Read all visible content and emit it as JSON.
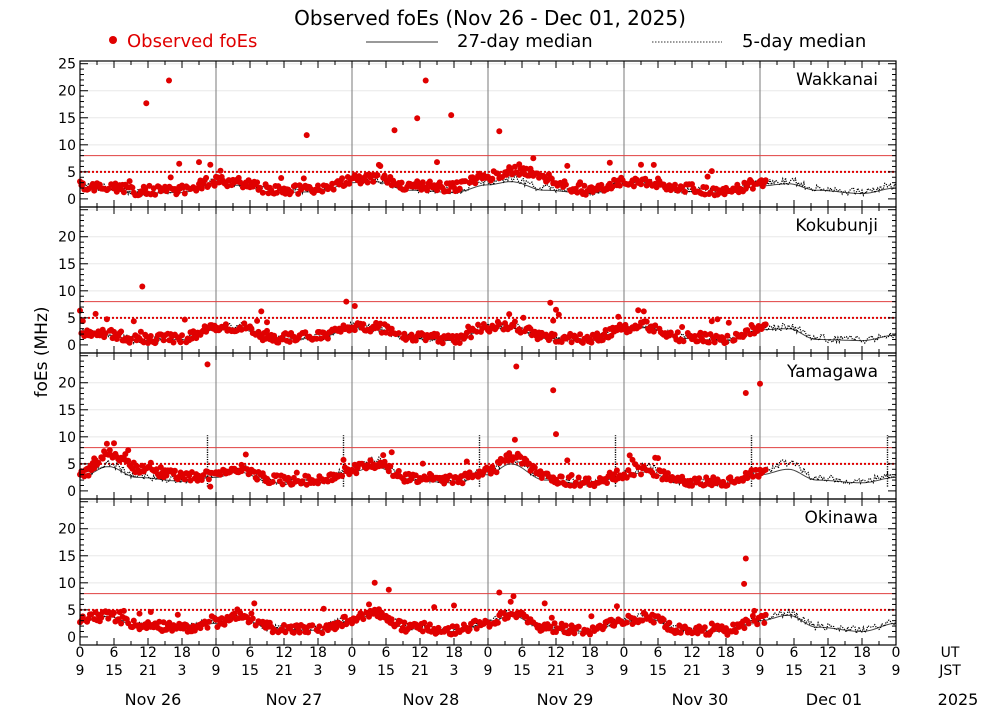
{
  "chart_data": {
    "type": "scatter",
    "title": "Observed foEs (Nov 26 - Dec 01, 2025)",
    "ylabel": "foEs (MHz)",
    "ylim": [
      -1.5,
      25.5
    ],
    "yticks": [
      "0",
      "5",
      "10",
      "15",
      "20",
      "25"
    ],
    "yticks_lower": [
      "0",
      "5",
      "10",
      "15",
      "20"
    ],
    "thresholds": {
      "solid_red": 8,
      "dotted_red": 5
    },
    "legend": {
      "observed": "Observed foEs",
      "median27": "27-day median",
      "median5": "5-day median"
    },
    "x_axis": {
      "ut_label": "UT",
      "jst_label": "JST",
      "ut_ticks": [
        "0",
        "6",
        "12",
        "18",
        "0",
        "6",
        "12",
        "18",
        "0",
        "6",
        "12",
        "18",
        "0",
        "6",
        "12",
        "18",
        "0",
        "6",
        "12",
        "18",
        "0",
        "6",
        "12",
        "18",
        "0"
      ],
      "jst_ticks": [
        "9",
        "15",
        "21",
        "3",
        "9",
        "15",
        "21",
        "3",
        "9",
        "15",
        "21",
        "3",
        "9",
        "15",
        "21",
        "3",
        "9",
        "15",
        "21",
        "3",
        "9",
        "15",
        "21",
        "3",
        "9"
      ],
      "days": [
        "Nov 26",
        "Nov 27",
        "Nov 28",
        "Nov 29",
        "Nov 30",
        "Dec 01"
      ],
      "year": "2025",
      "x_range_hours": [
        0,
        144
      ]
    },
    "stations": [
      {
        "name": "Wakkanai",
        "observed_end_hour": 121,
        "median27_keys": [
          [
            0,
            2.0
          ],
          [
            5,
            1.7
          ],
          [
            10,
            1.0
          ],
          [
            18,
            1.2
          ],
          [
            24,
            2.8
          ],
          [
            28,
            2.5
          ],
          [
            34,
            1.2
          ],
          [
            42,
            1.3
          ],
          [
            48,
            3.0
          ],
          [
            52,
            3.2
          ],
          [
            58,
            1.6
          ],
          [
            66,
            1.2
          ],
          [
            72,
            2.6
          ],
          [
            76,
            3.2
          ],
          [
            82,
            1.6
          ],
          [
            90,
            1.0
          ],
          [
            96,
            2.6
          ],
          [
            100,
            2.8
          ],
          [
            106,
            1.4
          ],
          [
            114,
            1.0
          ],
          [
            120,
            2.4
          ],
          [
            125,
            2.8
          ],
          [
            130,
            1.6
          ],
          [
            138,
            1.0
          ],
          [
            144,
            2.0
          ]
        ],
        "median5_keys": [
          [
            0,
            2.5
          ],
          [
            5,
            2.2
          ],
          [
            10,
            1.2
          ],
          [
            18,
            1.6
          ],
          [
            24,
            3.2
          ],
          [
            28,
            2.8
          ],
          [
            34,
            1.4
          ],
          [
            42,
            1.7
          ],
          [
            48,
            3.6
          ],
          [
            52,
            3.5
          ],
          [
            58,
            1.9
          ],
          [
            66,
            1.4
          ],
          [
            72,
            3.2
          ],
          [
            76,
            3.8
          ],
          [
            82,
            2.0
          ],
          [
            90,
            1.3
          ],
          [
            96,
            3.0
          ],
          [
            100,
            3.1
          ],
          [
            106,
            1.7
          ],
          [
            114,
            1.3
          ],
          [
            120,
            2.9
          ],
          [
            125,
            3.3
          ],
          [
            130,
            2.0
          ],
          [
            138,
            1.3
          ],
          [
            144,
            2.5
          ]
        ],
        "observed_bias_keys": [
          [
            0,
            0.5
          ],
          [
            48,
            0.5
          ],
          [
            66,
            1.0
          ],
          [
            72,
            1.5
          ],
          [
            80,
            2.5
          ],
          [
            90,
            0.5
          ],
          [
            144,
            0.5
          ]
        ],
        "spike_keys": [],
        "outliers": [
          [
            11.7,
            17.7
          ],
          [
            15.7,
            21.9
          ],
          [
            40.0,
            11.8
          ],
          [
            55.5,
            12.7
          ],
          [
            59.5,
            14.9
          ],
          [
            61.0,
            21.9
          ],
          [
            65.5,
            15.5
          ],
          [
            74.0,
            12.5
          ],
          [
            80.0,
            7.5
          ],
          [
            77.5,
            6.4
          ],
          [
            17.5,
            6.5
          ],
          [
            21.0,
            6.8
          ],
          [
            24.8,
            5.2
          ],
          [
            23.0,
            6.3
          ],
          [
            63.0,
            6.8
          ],
          [
            93.5,
            6.7
          ],
          [
            99.0,
            6.3
          ],
          [
            86.0,
            6.1
          ]
        ]
      },
      {
        "name": "Kokubunji",
        "observed_end_hour": 121,
        "median27_keys": [
          [
            0,
            2.2
          ],
          [
            5,
            1.8
          ],
          [
            10,
            0.8
          ],
          [
            18,
            1.0
          ],
          [
            24,
            2.8
          ],
          [
            28,
            3.0
          ],
          [
            34,
            1.0
          ],
          [
            42,
            1.2
          ],
          [
            48,
            3.2
          ],
          [
            52,
            3.0
          ],
          [
            58,
            1.2
          ],
          [
            66,
            0.8
          ],
          [
            72,
            3.0
          ],
          [
            76,
            3.2
          ],
          [
            82,
            1.2
          ],
          [
            90,
            0.8
          ],
          [
            96,
            2.8
          ],
          [
            100,
            3.2
          ],
          [
            106,
            1.2
          ],
          [
            114,
            0.8
          ],
          [
            120,
            2.8
          ],
          [
            125,
            3.0
          ],
          [
            130,
            1.0
          ],
          [
            138,
            0.8
          ],
          [
            144,
            1.8
          ]
        ],
        "median5_keys": [
          [
            0,
            2.4
          ],
          [
            5,
            2.0
          ],
          [
            10,
            1.0
          ],
          [
            18,
            1.2
          ],
          [
            24,
            3.2
          ],
          [
            28,
            3.5
          ],
          [
            34,
            1.2
          ],
          [
            42,
            1.4
          ],
          [
            48,
            3.5
          ],
          [
            52,
            3.2
          ],
          [
            58,
            1.4
          ],
          [
            66,
            1.0
          ],
          [
            72,
            3.3
          ],
          [
            76,
            3.5
          ],
          [
            82,
            1.4
          ],
          [
            90,
            1.0
          ],
          [
            96,
            3.0
          ],
          [
            100,
            3.5
          ],
          [
            106,
            1.4
          ],
          [
            114,
            1.0
          ],
          [
            120,
            3.1
          ],
          [
            125,
            3.4
          ],
          [
            130,
            1.2
          ],
          [
            138,
            1.0
          ],
          [
            144,
            2.0
          ]
        ],
        "observed_bias_keys": [
          [
            0,
            0.3
          ],
          [
            144,
            0.3
          ]
        ],
        "spike_keys": [],
        "outliers": [
          [
            11.0,
            10.8
          ],
          [
            47.0,
            8.0
          ],
          [
            48.5,
            7.2
          ],
          [
            83.0,
            7.8
          ],
          [
            84.0,
            6.5
          ],
          [
            84.5,
            5.6
          ],
          [
            83.5,
            4.5
          ],
          [
            32.0,
            6.2
          ],
          [
            33.0,
            4.2
          ],
          [
            95.0,
            5.2
          ],
          [
            98.5,
            6.4
          ],
          [
            99.5,
            6.2
          ],
          [
            0.5,
            4.4
          ]
        ]
      },
      {
        "name": "Yamagawa",
        "observed_end_hour": 121,
        "median27_keys": [
          [
            0,
            2.5
          ],
          [
            5,
            4.5
          ],
          [
            10,
            2.5
          ],
          [
            18,
            1.8
          ],
          [
            24,
            2.5
          ],
          [
            28,
            3.5
          ],
          [
            34,
            1.5
          ],
          [
            42,
            1.5
          ],
          [
            48,
            3.5
          ],
          [
            52,
            4.5
          ],
          [
            58,
            2.0
          ],
          [
            66,
            1.5
          ],
          [
            72,
            3.0
          ],
          [
            76,
            5.0
          ],
          [
            82,
            2.0
          ],
          [
            90,
            1.2
          ],
          [
            96,
            2.8
          ],
          [
            100,
            3.5
          ],
          [
            106,
            1.5
          ],
          [
            114,
            1.2
          ],
          [
            120,
            3.0
          ],
          [
            125,
            4.0
          ],
          [
            130,
            2.0
          ],
          [
            138,
            1.5
          ],
          [
            144,
            2.5
          ]
        ],
        "median5_keys": [
          [
            0,
            2.8
          ],
          [
            5,
            5.0
          ],
          [
            10,
            2.8
          ],
          [
            18,
            2.0
          ],
          [
            24,
            3.0
          ],
          [
            28,
            4.2
          ],
          [
            34,
            1.8
          ],
          [
            42,
            1.8
          ],
          [
            48,
            4.0
          ],
          [
            52,
            5.8
          ],
          [
            58,
            2.4
          ],
          [
            66,
            1.8
          ],
          [
            72,
            3.6
          ],
          [
            76,
            6.0
          ],
          [
            82,
            2.4
          ],
          [
            90,
            1.5
          ],
          [
            96,
            3.2
          ],
          [
            100,
            4.5
          ],
          [
            106,
            1.8
          ],
          [
            114,
            1.5
          ],
          [
            120,
            3.5
          ],
          [
            125,
            5.2
          ],
          [
            130,
            2.4
          ],
          [
            138,
            1.8
          ],
          [
            144,
            3.0
          ]
        ],
        "observed_bias_keys": [
          [
            0,
            0.5
          ],
          [
            6,
            2.5
          ],
          [
            12,
            1.5
          ],
          [
            24,
            0.5
          ],
          [
            72,
            0.5
          ],
          [
            77,
            1.5
          ],
          [
            85,
            0.3
          ],
          [
            144,
            0.5
          ]
        ],
        "spike_keys": [
          22.5,
          46.5,
          70.5,
          94.5,
          118.5,
          142.5
        ],
        "outliers": [
          [
            22.5,
            23.4
          ],
          [
            77.0,
            23.0
          ],
          [
            83.5,
            18.6
          ],
          [
            84.0,
            10.5
          ],
          [
            117.5,
            18.1
          ],
          [
            120.0,
            19.8
          ],
          [
            8.5,
            7.5
          ],
          [
            8.0,
            6.8
          ],
          [
            6.0,
            8.8
          ],
          [
            28.5,
            4.8
          ],
          [
            23.0,
            0.8
          ],
          [
            2.5,
            6.0
          ]
        ]
      },
      {
        "name": "Okinawa",
        "observed_end_hour": 121,
        "median27_keys": [
          [
            0,
            2.8
          ],
          [
            5,
            3.8
          ],
          [
            10,
            2.0
          ],
          [
            18,
            1.5
          ],
          [
            24,
            2.5
          ],
          [
            28,
            3.5
          ],
          [
            34,
            1.5
          ],
          [
            42,
            1.2
          ],
          [
            48,
            3.0
          ],
          [
            52,
            4.2
          ],
          [
            58,
            1.5
          ],
          [
            66,
            1.0
          ],
          [
            72,
            2.5
          ],
          [
            76,
            4.0
          ],
          [
            82,
            1.5
          ],
          [
            90,
            1.0
          ],
          [
            96,
            2.8
          ],
          [
            100,
            3.5
          ],
          [
            106,
            1.2
          ],
          [
            114,
            1.0
          ],
          [
            120,
            3.0
          ],
          [
            125,
            4.0
          ],
          [
            130,
            1.8
          ],
          [
            138,
            1.0
          ],
          [
            144,
            2.5
          ]
        ],
        "median5_keys": [
          [
            0,
            3.0
          ],
          [
            5,
            4.2
          ],
          [
            10,
            2.2
          ],
          [
            18,
            1.7
          ],
          [
            24,
            2.8
          ],
          [
            28,
            3.8
          ],
          [
            34,
            1.7
          ],
          [
            42,
            1.5
          ],
          [
            48,
            3.4
          ],
          [
            52,
            4.6
          ],
          [
            58,
            1.8
          ],
          [
            66,
            1.2
          ],
          [
            72,
            2.9
          ],
          [
            76,
            4.5
          ],
          [
            82,
            1.8
          ],
          [
            90,
            1.2
          ],
          [
            96,
            3.1
          ],
          [
            100,
            4.0
          ],
          [
            106,
            1.5
          ],
          [
            114,
            1.2
          ],
          [
            120,
            3.3
          ],
          [
            125,
            4.4
          ],
          [
            130,
            2.0
          ],
          [
            138,
            1.3
          ],
          [
            144,
            2.8
          ]
        ],
        "observed_bias_keys": [
          [
            0,
            0.2
          ],
          [
            144,
            0.2
          ]
        ],
        "spike_keys": [],
        "outliers": [
          [
            52.0,
            10.0
          ],
          [
            54.5,
            8.7
          ],
          [
            74.0,
            8.2
          ],
          [
            76.5,
            7.5
          ],
          [
            76.0,
            6.5
          ],
          [
            117.5,
            14.5
          ],
          [
            117.2,
            9.8
          ],
          [
            119.0,
            4.8
          ],
          [
            62.5,
            5.5
          ],
          [
            66.0,
            5.8
          ],
          [
            82.0,
            6.2
          ],
          [
            10.5,
            4.3
          ],
          [
            12.5,
            4.6
          ],
          [
            51.0,
            6.0
          ]
        ]
      }
    ]
  }
}
